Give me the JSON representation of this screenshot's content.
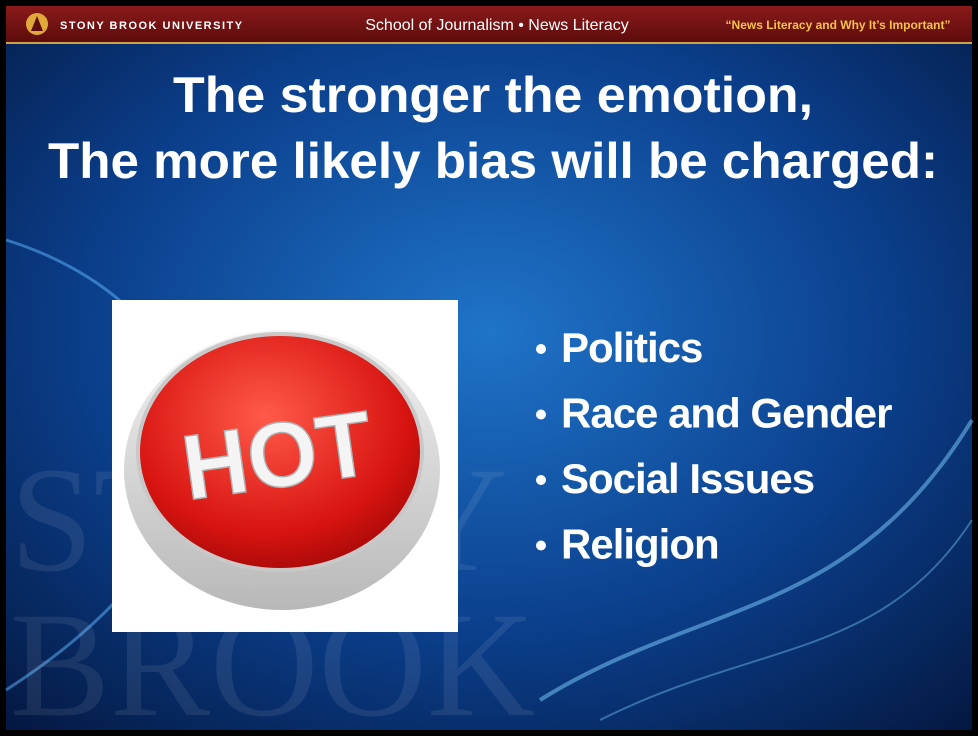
{
  "header": {
    "university": "STONY BROOK UNIVERSITY",
    "center": "School of Journalism • News Literacy",
    "right": "“News Literacy and Why It’s Important”"
  },
  "title": {
    "line1": "The stronger the emotion,",
    "line2": "The more likely bias will be charged:"
  },
  "image": {
    "label": "HOT"
  },
  "bullets": [
    "Politics",
    "Race and Gender",
    "Social Issues",
    "Religion"
  ],
  "watermark": [
    "STONY",
    "BROOK"
  ]
}
